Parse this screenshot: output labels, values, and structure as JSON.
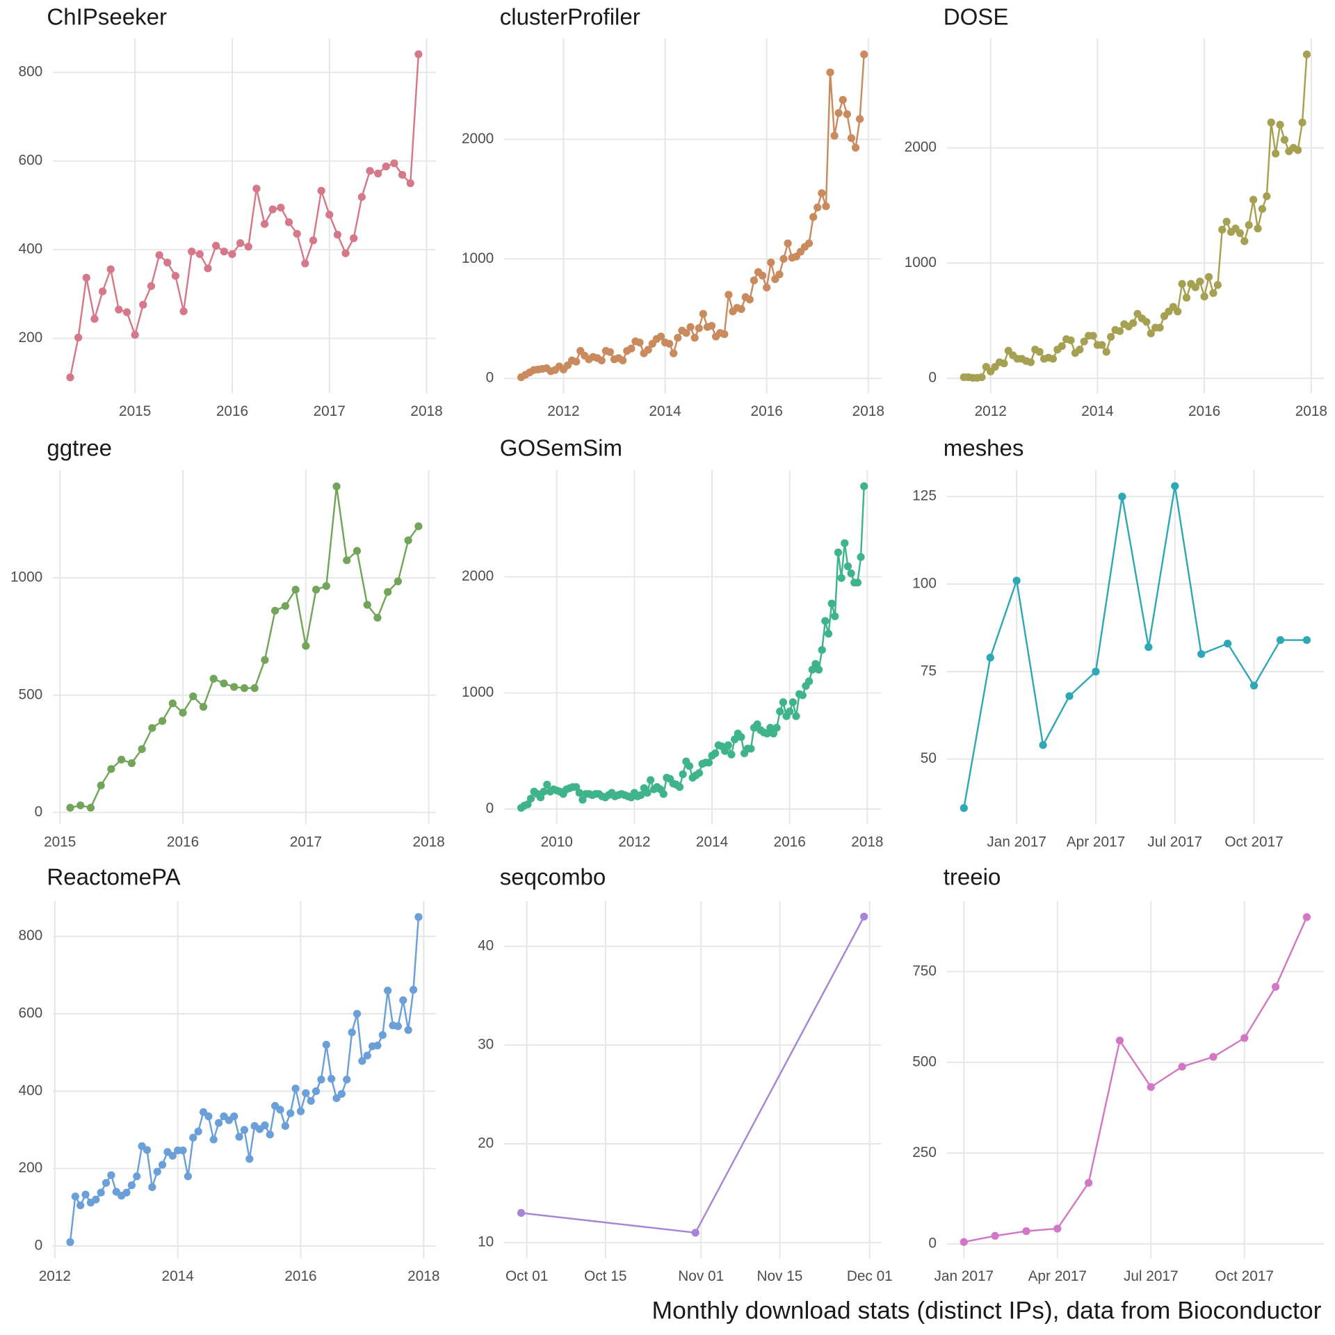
{
  "chart_data": [
    {
      "type": "line",
      "title": "ChIPseeker",
      "color": "#d4788a",
      "x": [
        "2014-05",
        "2014-06",
        "2014-07",
        "2014-08",
        "2014-09",
        "2014-10",
        "2014-11",
        "2014-12",
        "2015-01",
        "2015-02",
        "2015-03",
        "2015-04",
        "2015-05",
        "2015-06",
        "2015-07",
        "2015-08",
        "2015-09",
        "2015-10",
        "2015-11",
        "2015-12",
        "2016-01",
        "2016-02",
        "2016-03",
        "2016-04",
        "2016-05",
        "2016-06",
        "2016-07",
        "2016-08",
        "2016-09",
        "2016-10",
        "2016-11",
        "2016-12",
        "2017-01",
        "2017-02",
        "2017-03",
        "2017-04",
        "2017-05",
        "2017-06",
        "2017-07",
        "2017-08",
        "2017-09",
        "2017-10",
        "2017-11",
        "2017-12"
      ],
      "values": [
        112,
        202,
        337,
        244,
        306,
        356,
        265,
        259,
        208,
        276,
        318,
        388,
        371,
        341,
        261,
        396,
        390,
        358,
        409,
        396,
        390,
        415,
        407,
        538,
        458,
        491,
        495,
        462,
        436,
        369,
        421,
        533,
        479,
        434,
        392,
        426,
        519,
        578,
        572,
        588,
        595,
        569,
        550,
        841
      ],
      "ylim": [
        76,
        877
      ],
      "yticks": [
        200,
        400,
        600,
        800
      ],
      "xticks": [
        {
          "value": "2015-01",
          "label": "2015"
        },
        {
          "value": "2016-01",
          "label": "2016"
        },
        {
          "value": "2017-01",
          "label": "2017"
        },
        {
          "value": "2018-01",
          "label": "2018"
        }
      ]
    },
    {
      "type": "line",
      "title": "clusterProfiler",
      "color": "#c98a5e",
      "x": [
        "2011-03",
        "2011-04",
        "2011-05",
        "2011-06",
        "2011-07",
        "2011-08",
        "2011-09",
        "2011-10",
        "2011-11",
        "2011-12",
        "2012-01",
        "2012-02",
        "2012-03",
        "2012-04",
        "2012-05",
        "2012-06",
        "2012-07",
        "2012-08",
        "2012-09",
        "2012-10",
        "2012-11",
        "2012-12",
        "2013-01",
        "2013-02",
        "2013-03",
        "2013-04",
        "2013-05",
        "2013-06",
        "2013-07",
        "2013-08",
        "2013-09",
        "2013-10",
        "2013-11",
        "2013-12",
        "2014-01",
        "2014-02",
        "2014-03",
        "2014-04",
        "2014-05",
        "2014-06",
        "2014-07",
        "2014-08",
        "2014-09",
        "2014-10",
        "2014-11",
        "2014-12",
        "2015-01",
        "2015-02",
        "2015-03",
        "2015-04",
        "2015-05",
        "2015-06",
        "2015-07",
        "2015-08",
        "2015-09",
        "2015-10",
        "2015-11",
        "2015-12",
        "2016-01",
        "2016-02",
        "2016-03",
        "2016-04",
        "2016-05",
        "2016-06",
        "2016-07",
        "2016-08",
        "2016-09",
        "2016-10",
        "2016-11",
        "2016-12",
        "2017-01",
        "2017-02",
        "2017-03",
        "2017-04",
        "2017-05",
        "2017-06",
        "2017-07",
        "2017-08",
        "2017-09",
        "2017-10",
        "2017-11",
        "2017-12"
      ],
      "values": [
        10,
        30,
        50,
        70,
        75,
        80,
        85,
        60,
        70,
        100,
        75,
        110,
        150,
        140,
        230,
        190,
        160,
        180,
        170,
        150,
        230,
        220,
        160,
        170,
        150,
        230,
        250,
        310,
        300,
        210,
        240,
        290,
        330,
        350,
        300,
        290,
        210,
        340,
        400,
        380,
        430,
        340,
        420,
        540,
        430,
        440,
        350,
        380,
        370,
        700,
        560,
        590,
        580,
        680,
        660,
        820,
        890,
        860,
        760,
        970,
        830,
        870,
        1000,
        1130,
        1010,
        1020,
        1060,
        1100,
        1130,
        1350,
        1430,
        1550,
        1440,
        2560,
        2030,
        2220,
        2330,
        2210,
        2010,
        1930,
        2170,
        2710
      ],
      "ylim": [
        -125,
        2845
      ],
      "yticks": [
        0,
        1000,
        2000
      ],
      "xticks": [
        {
          "value": "2012-01",
          "label": "2012"
        },
        {
          "value": "2014-01",
          "label": "2014"
        },
        {
          "value": "2016-01",
          "label": "2016"
        },
        {
          "value": "2018-01",
          "label": "2018"
        }
      ]
    },
    {
      "type": "line",
      "title": "DOSE",
      "color": "#a6a152",
      "x": [
        "2011-07",
        "2011-08",
        "2011-09",
        "2011-10",
        "2011-11",
        "2011-12",
        "2012-01",
        "2012-02",
        "2012-03",
        "2012-04",
        "2012-05",
        "2012-06",
        "2012-07",
        "2012-08",
        "2012-09",
        "2012-10",
        "2012-11",
        "2012-12",
        "2013-01",
        "2013-02",
        "2013-03",
        "2013-04",
        "2013-05",
        "2013-06",
        "2013-07",
        "2013-08",
        "2013-09",
        "2013-10",
        "2013-11",
        "2013-12",
        "2014-01",
        "2014-02",
        "2014-03",
        "2014-04",
        "2014-05",
        "2014-06",
        "2014-07",
        "2014-08",
        "2014-09",
        "2014-10",
        "2014-11",
        "2014-12",
        "2015-01",
        "2015-02",
        "2015-03",
        "2015-04",
        "2015-05",
        "2015-06",
        "2015-07",
        "2015-08",
        "2015-09",
        "2015-10",
        "2015-11",
        "2015-12",
        "2016-01",
        "2016-02",
        "2016-03",
        "2016-04",
        "2016-05",
        "2016-06",
        "2016-07",
        "2016-08",
        "2016-09",
        "2016-10",
        "2016-11",
        "2016-12",
        "2017-01",
        "2017-02",
        "2017-03",
        "2017-04",
        "2017-05",
        "2017-06",
        "2017-07",
        "2017-08",
        "2017-09",
        "2017-10",
        "2017-11",
        "2017-12"
      ],
      "values": [
        10,
        10,
        5,
        5,
        10,
        100,
        60,
        100,
        140,
        130,
        240,
        200,
        170,
        170,
        150,
        140,
        250,
        230,
        170,
        180,
        170,
        250,
        280,
        340,
        330,
        220,
        250,
        320,
        370,
        370,
        290,
        290,
        230,
        360,
        420,
        410,
        470,
        450,
        480,
        560,
        520,
        490,
        390,
        440,
        440,
        540,
        580,
        620,
        580,
        820,
        700,
        820,
        790,
        840,
        710,
        880,
        740,
        810,
        1290,
        1360,
        1270,
        1300,
        1260,
        1190,
        1330,
        1550,
        1300,
        1470,
        1580,
        2220,
        1950,
        2200,
        2070,
        1970,
        2000,
        1980,
        2220,
        2810
      ],
      "ylim": [
        -130,
        2950
      ],
      "yticks": [
        0,
        1000,
        2000
      ],
      "xticks": [
        {
          "value": "2012-01",
          "label": "2012"
        },
        {
          "value": "2014-01",
          "label": "2014"
        },
        {
          "value": "2016-01",
          "label": "2016"
        },
        {
          "value": "2018-01",
          "label": "2018"
        }
      ]
    },
    {
      "type": "line",
      "title": "ggtree",
      "color": "#72a55a",
      "x": [
        "2015-02",
        "2015-03",
        "2015-04",
        "2015-05",
        "2015-06",
        "2015-07",
        "2015-08",
        "2015-09",
        "2015-10",
        "2015-11",
        "2015-12",
        "2016-01",
        "2016-02",
        "2016-03",
        "2016-04",
        "2016-05",
        "2016-06",
        "2016-07",
        "2016-08",
        "2016-09",
        "2016-10",
        "2016-11",
        "2016-12",
        "2017-01",
        "2017-02",
        "2017-03",
        "2017-04",
        "2017-05",
        "2017-06",
        "2017-07",
        "2017-08",
        "2017-09",
        "2017-10",
        "2017-11",
        "2017-12"
      ],
      "values": [
        20,
        30,
        20,
        115,
        185,
        225,
        210,
        270,
        360,
        390,
        465,
        425,
        495,
        450,
        570,
        550,
        535,
        530,
        530,
        650,
        860,
        880,
        950,
        710,
        950,
        965,
        1390,
        1075,
        1115,
        885,
        830,
        940,
        985,
        1160,
        1220
      ],
      "ylim": [
        -50,
        1460
      ],
      "yticks": [
        0,
        500,
        1000
      ],
      "xticks": [
        {
          "value": "2015-01",
          "label": "2015"
        },
        {
          "value": "2016-01",
          "label": "2016"
        },
        {
          "value": "2017-01",
          "label": "2017"
        },
        {
          "value": "2018-01",
          "label": "2018"
        }
      ]
    },
    {
      "type": "line",
      "title": "GOSemSim",
      "color": "#3fb48a",
      "x": [
        "2009-02",
        "2009-03",
        "2009-04",
        "2009-05",
        "2009-06",
        "2009-07",
        "2009-08",
        "2009-09",
        "2009-10",
        "2009-11",
        "2009-12",
        "2010-01",
        "2010-02",
        "2010-03",
        "2010-04",
        "2010-05",
        "2010-06",
        "2010-07",
        "2010-08",
        "2010-09",
        "2010-10",
        "2010-11",
        "2010-12",
        "2011-01",
        "2011-02",
        "2011-03",
        "2011-04",
        "2011-05",
        "2011-06",
        "2011-07",
        "2011-08",
        "2011-09",
        "2011-10",
        "2011-11",
        "2011-12",
        "2012-01",
        "2012-02",
        "2012-03",
        "2012-04",
        "2012-05",
        "2012-06",
        "2012-07",
        "2012-08",
        "2012-09",
        "2012-10",
        "2012-11",
        "2012-12",
        "2013-01",
        "2013-02",
        "2013-03",
        "2013-04",
        "2013-05",
        "2013-06",
        "2013-07",
        "2013-08",
        "2013-09",
        "2013-10",
        "2013-11",
        "2013-12",
        "2014-01",
        "2014-02",
        "2014-03",
        "2014-04",
        "2014-05",
        "2014-06",
        "2014-07",
        "2014-08",
        "2014-09",
        "2014-10",
        "2014-11",
        "2014-12",
        "2015-01",
        "2015-02",
        "2015-03",
        "2015-04",
        "2015-05",
        "2015-06",
        "2015-07",
        "2015-08",
        "2015-09",
        "2015-10",
        "2015-11",
        "2015-12",
        "2016-01",
        "2016-02",
        "2016-03",
        "2016-04",
        "2016-05",
        "2016-06",
        "2016-07",
        "2016-08",
        "2016-09",
        "2016-10",
        "2016-11",
        "2016-12",
        "2017-01",
        "2017-02",
        "2017-03",
        "2017-04",
        "2017-05",
        "2017-06",
        "2017-07",
        "2017-08",
        "2017-09",
        "2017-10",
        "2017-11",
        "2017-12"
      ],
      "values": [
        10,
        30,
        40,
        90,
        150,
        130,
        100,
        150,
        210,
        150,
        170,
        160,
        150,
        130,
        170,
        180,
        190,
        190,
        140,
        80,
        130,
        130,
        120,
        130,
        130,
        110,
        100,
        120,
        140,
        110,
        120,
        130,
        120,
        110,
        100,
        140,
        110,
        120,
        180,
        140,
        250,
        170,
        190,
        170,
        130,
        270,
        260,
        220,
        210,
        190,
        300,
        410,
        370,
        270,
        290,
        310,
        390,
        400,
        400,
        460,
        480,
        550,
        540,
        500,
        550,
        470,
        600,
        650,
        620,
        480,
        520,
        520,
        700,
        730,
        680,
        660,
        650,
        700,
        650,
        700,
        840,
        920,
        800,
        840,
        920,
        800,
        990,
        980,
        1060,
        1100,
        1200,
        1250,
        1200,
        1370,
        1620,
        1510,
        1770,
        1660,
        2210,
        1990,
        2290,
        2090,
        2030,
        1950,
        1950,
        2170,
        2780
      ],
      "ylim": [
        -130,
        2920
      ],
      "yticks": [
        0,
        1000,
        2000
      ],
      "xticks": [
        {
          "value": "2010-01",
          "label": "2010"
        },
        {
          "value": "2012-01",
          "label": "2012"
        },
        {
          "value": "2014-01",
          "label": "2014"
        },
        {
          "value": "2016-01",
          "label": "2016"
        },
        {
          "value": "2018-01",
          "label": "2018"
        }
      ]
    },
    {
      "type": "line",
      "title": "meshes",
      "color": "#2fa8b5",
      "x": [
        "2016-11",
        "2016-12",
        "2017-01",
        "2017-02",
        "2017-03",
        "2017-04",
        "2017-05",
        "2017-06",
        "2017-07",
        "2017-08",
        "2017-09",
        "2017-10",
        "2017-11",
        "2017-12"
      ],
      "values": [
        36,
        79,
        101,
        54,
        68,
        75,
        125,
        82,
        128,
        80,
        83,
        71,
        84,
        84
      ],
      "ylim": [
        31.4,
        132.6
      ],
      "yticks": [
        50,
        75,
        100,
        125
      ],
      "xticks": [
        {
          "value": "2017-01",
          "label": "Jan 2017"
        },
        {
          "value": "2017-04",
          "label": "Apr 2017"
        },
        {
          "value": "2017-07",
          "label": "Jul 2017"
        },
        {
          "value": "2017-10",
          "label": "Oct 2017"
        }
      ]
    },
    {
      "type": "line",
      "title": "ReactomePA",
      "color": "#6a9fd8",
      "x": [
        "2012-04",
        "2012-05",
        "2012-06",
        "2012-07",
        "2012-08",
        "2012-09",
        "2012-10",
        "2012-11",
        "2012-12",
        "2013-01",
        "2013-02",
        "2013-03",
        "2013-04",
        "2013-05",
        "2013-06",
        "2013-07",
        "2013-08",
        "2013-09",
        "2013-10",
        "2013-11",
        "2013-12",
        "2014-01",
        "2014-02",
        "2014-03",
        "2014-04",
        "2014-05",
        "2014-06",
        "2014-07",
        "2014-08",
        "2014-09",
        "2014-10",
        "2014-11",
        "2014-12",
        "2015-01",
        "2015-02",
        "2015-03",
        "2015-04",
        "2015-05",
        "2015-06",
        "2015-07",
        "2015-08",
        "2015-09",
        "2015-10",
        "2015-11",
        "2015-12",
        "2016-01",
        "2016-02",
        "2016-03",
        "2016-04",
        "2016-05",
        "2016-06",
        "2016-07",
        "2016-08",
        "2016-09",
        "2016-10",
        "2016-11",
        "2016-12",
        "2017-01",
        "2017-02",
        "2017-03",
        "2017-04",
        "2017-05",
        "2017-06",
        "2017-07",
        "2017-08",
        "2017-09",
        "2017-10",
        "2017-11",
        "2017-12"
      ],
      "values": [
        10,
        128,
        105,
        133,
        112,
        120,
        138,
        163,
        183,
        140,
        130,
        138,
        157,
        180,
        258,
        248,
        152,
        192,
        210,
        243,
        233,
        247,
        247,
        180,
        280,
        296,
        346,
        335,
        275,
        318,
        335,
        325,
        335,
        282,
        300,
        225,
        310,
        302,
        312,
        288,
        362,
        352,
        310,
        343,
        407,
        348,
        395,
        375,
        400,
        430,
        520,
        432,
        382,
        393,
        430,
        552,
        600,
        478,
        492,
        516,
        518,
        545,
        660,
        570,
        568,
        635,
        558,
        662,
        850
      ],
      "ylim": [
        -32,
        892
      ],
      "yticks": [
        0,
        200,
        400,
        600,
        800
      ],
      "xticks": [
        {
          "value": "2012-01",
          "label": "2012"
        },
        {
          "value": "2014-01",
          "label": "2014"
        },
        {
          "value": "2016-01",
          "label": "2016"
        },
        {
          "value": "2018-01",
          "label": "2018"
        }
      ]
    },
    {
      "type": "line",
      "title": "seqcombo",
      "color": "#a784d6",
      "x": [
        "09-30",
        "10-31",
        "11-30"
      ],
      "values": [
        13,
        11,
        43
      ],
      "ylim": [
        8.4,
        44.6
      ],
      "yticks": [
        10,
        20,
        30,
        40
      ],
      "xticks": [
        {
          "value": "10-01",
          "label": "Oct 01"
        },
        {
          "value": "10-15",
          "label": "Oct 15"
        },
        {
          "value": "11-01",
          "label": "Nov 01"
        },
        {
          "value": "11-15",
          "label": "Nov 15"
        },
        {
          "value": "12-01",
          "label": "Dec 01"
        }
      ]
    },
    {
      "type": "line",
      "title": "treeio",
      "color": "#d277c6",
      "x": [
        "2017-01",
        "2017-02",
        "2017-03",
        "2017-04",
        "2017-05",
        "2017-06",
        "2017-07",
        "2017-08",
        "2017-09",
        "2017-10",
        "2017-11",
        "2017-12"
      ],
      "values": [
        5,
        22,
        35,
        42,
        168,
        560,
        432,
        488,
        515,
        567,
        708,
        900
      ],
      "ylim": [
        -40,
        945
      ],
      "yticks": [
        0,
        250,
        500,
        750
      ],
      "xticks": [
        {
          "value": "2017-01",
          "label": "Jan 2017"
        },
        {
          "value": "2017-04",
          "label": "Apr 2017"
        },
        {
          "value": "2017-07",
          "label": "Jul 2017"
        },
        {
          "value": "2017-10",
          "label": "Oct 2017"
        }
      ]
    }
  ],
  "caption": "Monthly download stats (distinct IPs), data from Bioconductor"
}
